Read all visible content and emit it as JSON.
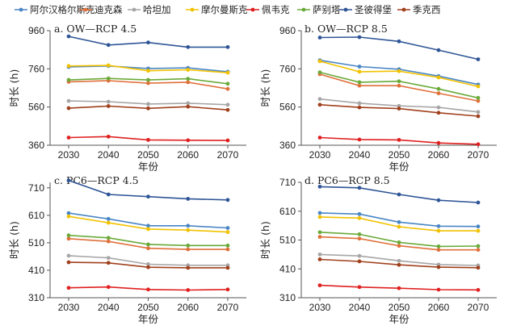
{
  "legend": [
    {
      "name": "阿尔汉格尔斯克",
      "color": "#4a86c5"
    },
    {
      "name": "迪克森",
      "color": "#e0703a"
    },
    {
      "name": "哈坦加",
      "color": "#a6a6a6"
    },
    {
      "name": "摩尔曼斯克",
      "color": "#f2c200"
    },
    {
      "name": "佩韦克",
      "color": "#e02020"
    },
    {
      "name": "萨别塔",
      "color": "#6aaa3a"
    },
    {
      "name": "圣彼得堡",
      "color": "#2f5597"
    },
    {
      "name": "季克西",
      "color": "#a0401c"
    }
  ],
  "chart_data": [
    {
      "type": "line",
      "title": "a. OW—RCP 4.5",
      "xlabel": "年份",
      "ylabel": "时长 (h)",
      "x": [
        2030,
        2040,
        2050,
        2060,
        2070
      ],
      "ylim": [
        360,
        960
      ],
      "yticks": [
        360,
        560,
        760,
        960
      ],
      "series": [
        {
          "name": "阿尔汉格尔斯克",
          "values": [
            770,
            775,
            762,
            765,
            745
          ]
        },
        {
          "name": "迪克森",
          "values": [
            692,
            698,
            685,
            690,
            655
          ]
        },
        {
          "name": "哈坦加",
          "values": [
            592,
            588,
            576,
            580,
            572
          ]
        },
        {
          "name": "摩尔曼斯克",
          "values": [
            775,
            778,
            750,
            755,
            740
          ]
        },
        {
          "name": "佩韦克",
          "values": [
            400,
            405,
            388,
            386,
            385
          ]
        },
        {
          "name": "萨别塔",
          "values": [
            702,
            710,
            702,
            708,
            682
          ]
        },
        {
          "name": "圣彼得堡",
          "values": [
            930,
            885,
            898,
            874,
            874
          ]
        },
        {
          "name": "季克西",
          "values": [
            554,
            565,
            553,
            562,
            545
          ]
        }
      ]
    },
    {
      "type": "line",
      "title": "b. OW—RCP 8.5",
      "xlabel": "年份",
      "ylabel": "时长 (h)",
      "x": [
        2030,
        2040,
        2050,
        2060,
        2070
      ],
      "ylim": [
        360,
        960
      ],
      "yticks": [
        360,
        560,
        760,
        960
      ],
      "series": [
        {
          "name": "阿尔汉格尔斯克",
          "values": [
            805,
            772,
            758,
            722,
            678
          ]
        },
        {
          "name": "迪克森",
          "values": [
            732,
            672,
            672,
            632,
            592
          ]
        },
        {
          "name": "哈坦加",
          "values": [
            602,
            580,
            566,
            558,
            534
          ]
        },
        {
          "name": "摩尔曼斯克",
          "values": [
            800,
            745,
            748,
            715,
            668
          ]
        },
        {
          "name": "佩韦克",
          "values": [
            400,
            390,
            388,
            372,
            365
          ]
        },
        {
          "name": "萨别塔",
          "values": [
            742,
            690,
            695,
            655,
            608
          ]
        },
        {
          "name": "圣彼得堡",
          "values": [
            924,
            926,
            904,
            858,
            810
          ]
        },
        {
          "name": "季克西",
          "values": [
            572,
            558,
            552,
            530,
            512
          ]
        }
      ]
    },
    {
      "type": "line",
      "title": "c. PC6—RCP 4.5",
      "xlabel": "年份",
      "ylabel": "时长 (h)",
      "x": [
        2030,
        2040,
        2050,
        2060,
        2070
      ],
      "ylim": [
        310,
        730
      ],
      "yticks": [
        310,
        410,
        510,
        610,
        710
      ],
      "series": [
        {
          "name": "阿尔汉格尔斯克",
          "values": [
            618,
            597,
            572,
            572,
            564
          ]
        },
        {
          "name": "迪克森",
          "values": [
            525,
            515,
            490,
            486,
            486
          ]
        },
        {
          "name": "哈坦加",
          "values": [
            463,
            455,
            432,
            428,
            428
          ]
        },
        {
          "name": "摩尔曼斯克",
          "values": [
            606,
            583,
            560,
            556,
            549
          ]
        },
        {
          "name": "佩韦克",
          "values": [
            346,
            349,
            340,
            338,
            340
          ]
        },
        {
          "name": "萨别塔",
          "values": [
            537,
            528,
            504,
            500,
            500
          ]
        },
        {
          "name": "圣彼得堡",
          "values": [
            737,
            686,
            678,
            670,
            666
          ]
        },
        {
          "name": "季克西",
          "values": [
            439,
            437,
            421,
            419,
            419
          ]
        }
      ]
    },
    {
      "type": "line",
      "title": "d. PC6—RCP 8.5",
      "xlabel": "年份",
      "ylabel": "时长 (h)",
      "x": [
        2030,
        2040,
        2050,
        2060,
        2070
      ],
      "ylim": [
        310,
        710
      ],
      "yticks": [
        310,
        410,
        510,
        610,
        710
      ],
      "series": [
        {
          "name": "阿尔汉格尔斯克",
          "values": [
            604,
            600,
            572,
            558,
            557
          ]
        },
        {
          "name": "迪克森",
          "values": [
            521,
            515,
            490,
            476,
            476
          ]
        },
        {
          "name": "哈坦加",
          "values": [
            460,
            455,
            438,
            425,
            422
          ]
        },
        {
          "name": "摩尔曼斯克",
          "values": [
            590,
            586,
            556,
            542,
            542
          ]
        },
        {
          "name": "佩韦克",
          "values": [
            353,
            347,
            343,
            338,
            337
          ]
        },
        {
          "name": "萨别塔",
          "values": [
            537,
            530,
            502,
            488,
            489
          ]
        },
        {
          "name": "圣彼得堡",
          "values": [
            695,
            691,
            668,
            648,
            640
          ]
        },
        {
          "name": "季克西",
          "values": [
            443,
            436,
            424,
            416,
            414
          ]
        }
      ]
    }
  ]
}
